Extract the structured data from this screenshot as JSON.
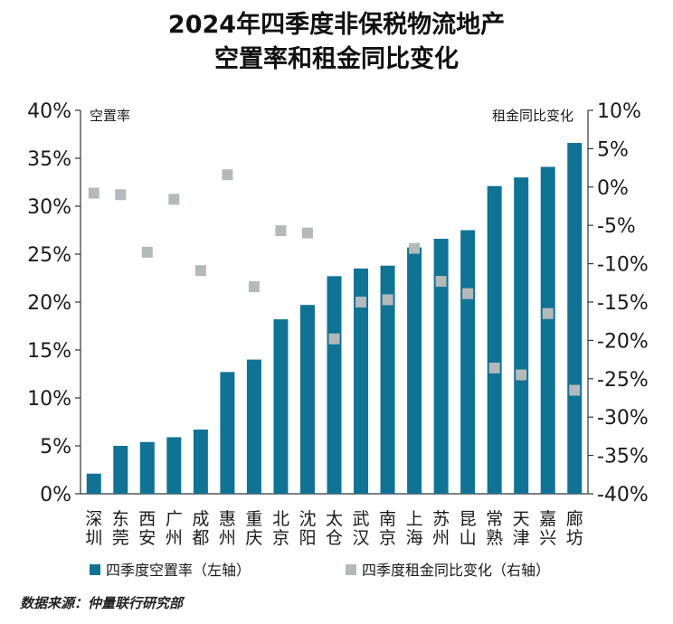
{
  "chart_data": {
    "type": "bar+scatter",
    "title_line1": "2024年四季度非保税物流地产",
    "title_line2": "空置率和租金同比变化",
    "left_axis_label": "空置率",
    "right_axis_label": "租金同比变化",
    "left_ylim": [
      0,
      40
    ],
    "right_ylim": [
      -40,
      10
    ],
    "left_ticks": [
      "0%",
      "5%",
      "10%",
      "15%",
      "20%",
      "25%",
      "30%",
      "35%",
      "40%"
    ],
    "right_ticks": [
      "-40%",
      "-35%",
      "-30%",
      "-25%",
      "-20%",
      "-15%",
      "-10%",
      "-5%",
      "0%",
      "5%",
      "10%"
    ],
    "categories": [
      [
        "深",
        "圳"
      ],
      [
        "东",
        "莞"
      ],
      [
        "西",
        "安"
      ],
      [
        "广",
        "州"
      ],
      [
        "成",
        "都"
      ],
      [
        "惠",
        "州"
      ],
      [
        "重",
        "庆"
      ],
      [
        "北",
        "京"
      ],
      [
        "沈",
        "阳"
      ],
      [
        "太",
        "仓"
      ],
      [
        "武",
        "汉"
      ],
      [
        "南",
        "京"
      ],
      [
        "上",
        "海"
      ],
      [
        "苏",
        "州"
      ],
      [
        "昆",
        "山"
      ],
      [
        "常",
        "熟"
      ],
      [
        "天",
        "津"
      ],
      [
        "嘉",
        "兴"
      ],
      [
        "廊",
        "坊"
      ]
    ],
    "series": [
      {
        "name": "四季度空置率（左轴）",
        "kind": "bar",
        "axis": "left",
        "values": [
          2.1,
          5.0,
          5.4,
          5.9,
          6.7,
          12.7,
          14.0,
          18.2,
          19.7,
          22.7,
          23.5,
          23.8,
          25.7,
          26.6,
          27.5,
          32.1,
          33.0,
          34.1,
          36.6
        ]
      },
      {
        "name": "四季度租金同比变化（右轴）",
        "kind": "scatter",
        "axis": "right",
        "values": [
          -0.8,
          -1.0,
          -8.5,
          -1.6,
          -10.9,
          1.6,
          -13.0,
          -5.7,
          -6.0,
          -19.8,
          -15.0,
          -14.7,
          -8.0,
          -12.3,
          -13.9,
          -23.6,
          -24.5,
          -16.5,
          -26.5
        ]
      }
    ],
    "colors": {
      "bar": "#0f7396",
      "marker": "#b4b9bc",
      "axis": "#333333"
    }
  },
  "footer": {
    "source": "数据来源：仲量联行研究部"
  }
}
